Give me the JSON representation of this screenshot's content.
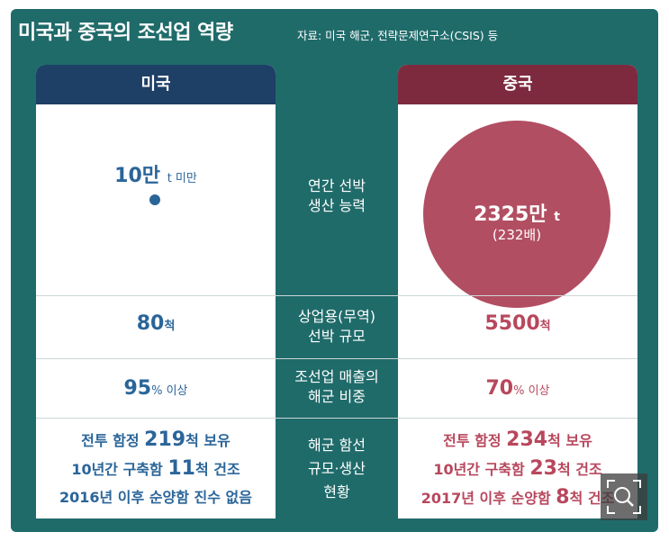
{
  "title": "미국과 중국의 조선업 역량",
  "source": "자료: 미국 해군, 전략문제연구소(CSIS) 등",
  "columns": {
    "us": "미국",
    "cn": "중국"
  },
  "row_labels": {
    "capacity": [
      "연간 선박",
      "생산 능력"
    ],
    "fleet": [
      "상업용(무역)",
      "선박 규모"
    ],
    "share": [
      "조선업 매출의",
      "해군 비중"
    ],
    "navy": [
      "해군 함선",
      "규모·생산",
      "현황"
    ]
  },
  "us": {
    "capacity_num": "10만",
    "capacity_unit": "t 미만",
    "fleet_num": "80",
    "fleet_unit": "척",
    "share_num": "95",
    "share_unit": "% 이상",
    "navy": [
      {
        "pre": "전투 함정 ",
        "num": "219",
        "post": "척 보유"
      },
      {
        "pre": "10년간 구축함 ",
        "num": "11",
        "post": "척 건조"
      },
      {
        "pre": "2016년 이후 순양함 진수 없음",
        "num": "",
        "post": ""
      }
    ]
  },
  "cn": {
    "capacity_num": "2325만",
    "capacity_unit": "t",
    "capacity_ratio": "(232배)",
    "fleet_num": "5500",
    "fleet_unit": "척",
    "share_num": "70",
    "share_unit": "% 이상",
    "navy": [
      {
        "pre": "전투 함정 ",
        "num": "234",
        "post": "척 보유"
      },
      {
        "pre": "10년간 구축함 ",
        "num": "23",
        "post": "척 건조"
      },
      {
        "pre": "2017년 이후 순양함 ",
        "num": "8",
        "post": "척 건조"
      }
    ]
  },
  "colors": {
    "background": "#1f6b6a",
    "us": "#2a6599",
    "us_header": "#1e3f66",
    "cn": "#b8475d",
    "cn_header": "#7e2a3e"
  },
  "chart_data": {
    "type": "table",
    "title": "미국과 중국의 조선업 역량",
    "columns": [
      "미국",
      "중국"
    ],
    "rows": [
      {
        "label": "연간 선박 생산 능력",
        "미국": "10만 t 미만",
        "중국": "2325만 t (232배)"
      },
      {
        "label": "상업용(무역) 선박 규모",
        "미국": "80척",
        "중국": "5500척"
      },
      {
        "label": "조선업 매출의 해군 비중",
        "미국": "95% 이상",
        "중국": "70% 이상"
      },
      {
        "label": "해군 함선 규모·생산 현황",
        "미국": "전투 함정 219척 보유 / 10년간 구축함 11척 건조 / 2016년 이후 순양함 진수 없음",
        "중국": "전투 함정 234척 보유 / 10년간 구축함 23척 건조 / 2017년 이후 순양함 8척 건조"
      }
    ],
    "annual_capacity_tonnes": {
      "미국": 100000,
      "중국": 23250000
    }
  }
}
